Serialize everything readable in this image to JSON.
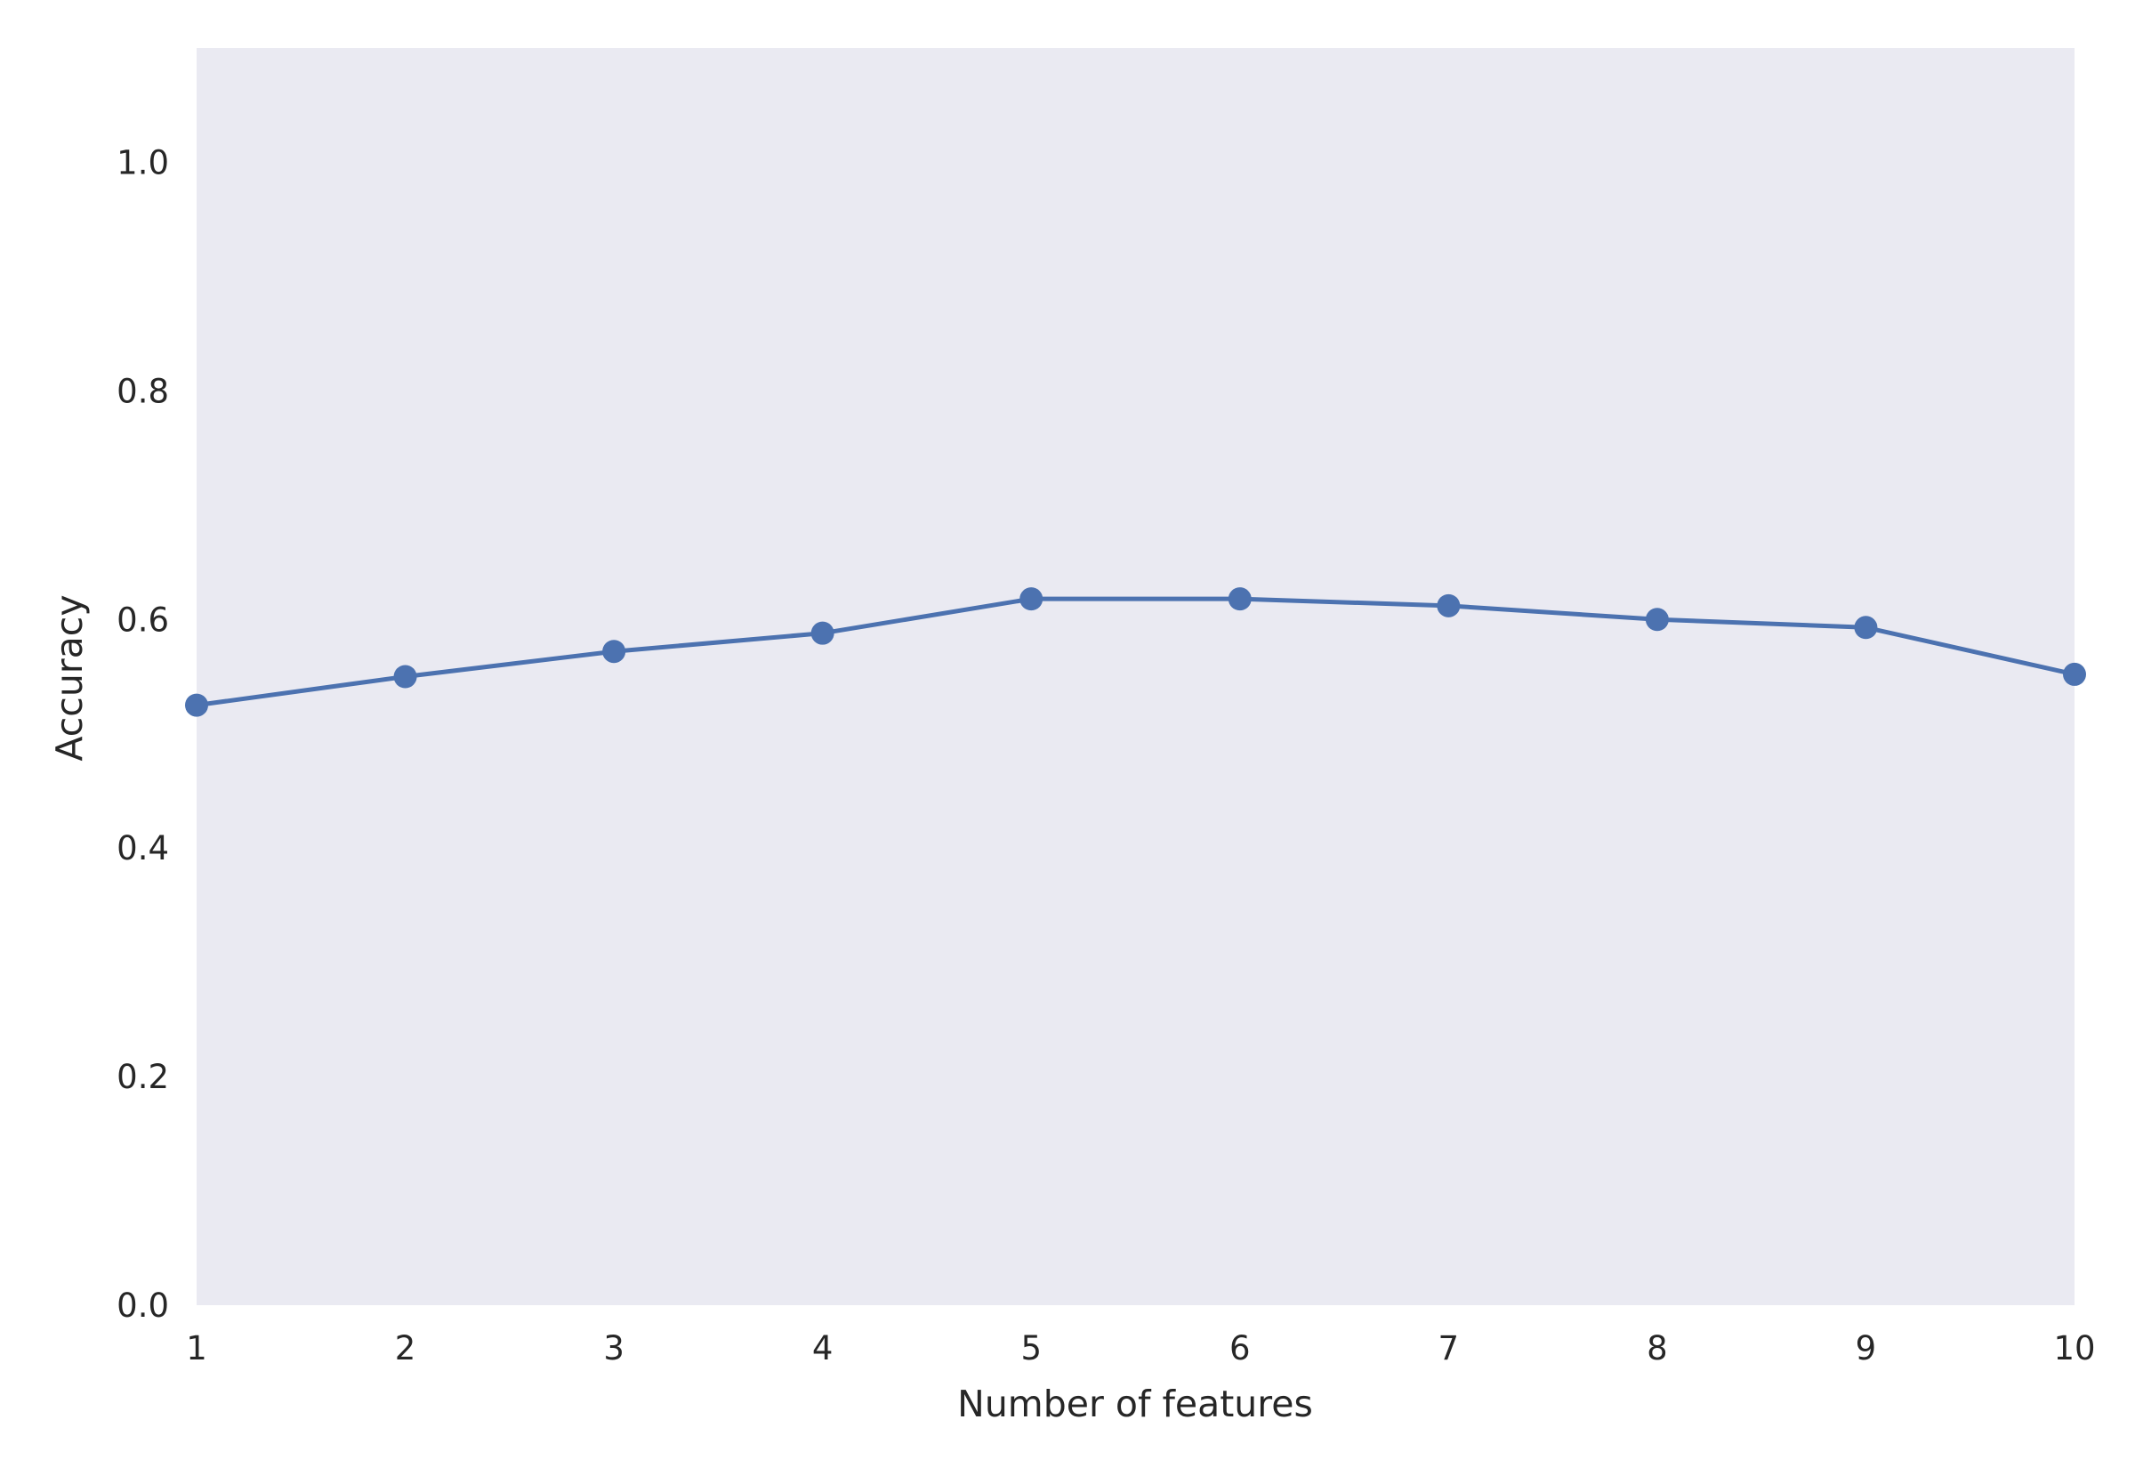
{
  "chart_data": {
    "type": "line",
    "title": "",
    "xlabel": "Number of features",
    "ylabel": "Accuracy",
    "x": [
      1,
      2,
      3,
      4,
      5,
      6,
      7,
      8,
      9,
      10
    ],
    "series": [
      {
        "values": [
          0.525,
          0.55,
          0.572,
          0.588,
          0.618,
          0.618,
          0.612,
          0.6,
          0.593,
          0.552
        ]
      }
    ],
    "xlim": [
      1,
      10
    ],
    "ylim": [
      0,
      1.1
    ],
    "xticks": [
      1,
      2,
      3,
      4,
      5,
      6,
      7,
      8,
      9,
      10
    ],
    "yticks": [
      "0.0",
      "0.2",
      "0.4",
      "0.6",
      "0.8",
      "1.0"
    ],
    "grid": false,
    "marker": "circle",
    "colors": {
      "plot_background": "#eaeaf2",
      "line": "#4c72b0",
      "text": "#262626"
    }
  }
}
